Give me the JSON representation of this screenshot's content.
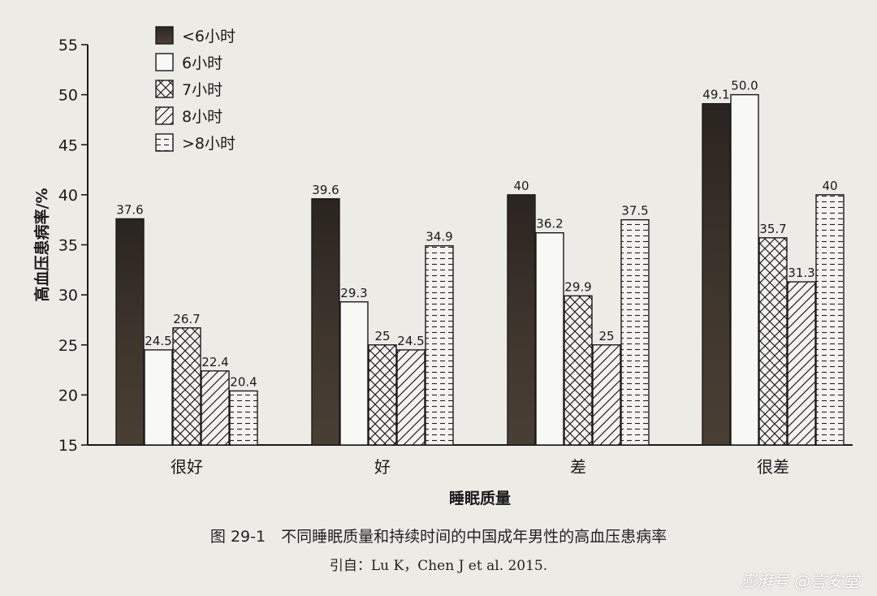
{
  "chart_data": {
    "type": "bar",
    "ylabel": "高血压患病率/%",
    "xlabel": "睡眠质量",
    "ylim": [
      15,
      55
    ],
    "yticks": [
      15,
      20,
      25,
      30,
      35,
      40,
      45,
      50,
      55
    ],
    "categories": [
      "很好",
      "好",
      "差",
      "很差"
    ],
    "legend_position": "top-left",
    "grid": false,
    "series": [
      {
        "name": "<6小时",
        "pattern": "dark",
        "values": [
          37.6,
          39.6,
          40,
          49.1
        ],
        "labels": [
          "37.6",
          "39.6",
          "40",
          "49.1"
        ]
      },
      {
        "name": "6小时",
        "pattern": "white",
        "values": [
          24.5,
          29.3,
          36.2,
          50.0
        ],
        "labels": [
          "24.5",
          "29.3",
          "36.2",
          "50.0"
        ]
      },
      {
        "name": "7小时",
        "pattern": "cross",
        "values": [
          26.7,
          25,
          29.9,
          35.7
        ],
        "labels": [
          "26.7",
          "25",
          "29.9",
          "35.7"
        ]
      },
      {
        "name": "8小时",
        "pattern": "diag",
        "values": [
          22.4,
          24.5,
          25,
          31.3
        ],
        "labels": [
          "22.4",
          "24.5",
          "25",
          "31.3"
        ]
      },
      {
        "name": ">8小时",
        "pattern": "dashed",
        "values": [
          20.4,
          34.9,
          37.5,
          40
        ],
        "labels": [
          "20.4",
          "34.9",
          "37.5",
          "40"
        ]
      }
    ],
    "colors": {
      "dark": "#3a322b",
      "line": "#1a1a1a"
    }
  },
  "caption": "图 29-1　不同睡眠质量和持续时间的中国成年男性的高血压患病率",
  "source": "引自：Lu K，Chen J et al. 2015.",
  "watermark": "澎湃号 @言安堂"
}
